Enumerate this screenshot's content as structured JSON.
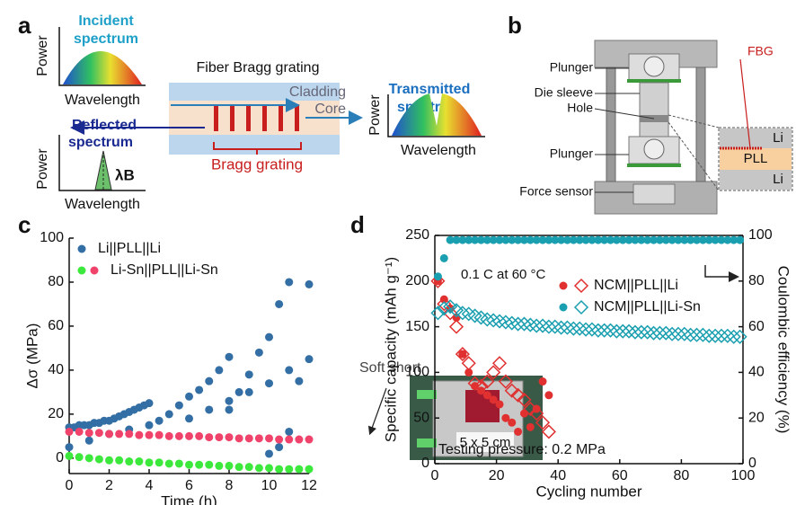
{
  "panel_labels": [
    "a",
    "b",
    "c",
    "d"
  ],
  "panel_a": {
    "incident": "Incident",
    "incident_2": "spectrum",
    "fiber": "Fiber Bragg grating",
    "cladding": "Cladding",
    "core": "Core",
    "transmitted": "Transmitted",
    "transmitted_2": "spectrum",
    "reflected": "Reflected",
    "reflected_2": "spectrum",
    "bragg": "Bragg grating",
    "lambda": "λB",
    "power": [
      "Power",
      "Power",
      "Power"
    ],
    "wavelength": [
      "Wavelength",
      "Wavelength",
      "Wavelength"
    ]
  },
  "panel_b": {
    "labels": [
      "Plunger",
      "Die sleeve",
      "Hole",
      "Plunger",
      "Force sensor"
    ],
    "fbg": "FBG",
    "layers": [
      "Li",
      "PLL",
      "Li"
    ]
  },
  "chart_data": [
    {
      "type": "scatter",
      "xlabel": "Time (h)",
      "ylabel": "Δσ (MPa)",
      "xlim": [
        0,
        12
      ],
      "ylim": [
        -7,
        100
      ],
      "xticks": [
        0,
        2,
        4,
        6,
        8,
        10,
        12
      ],
      "yticks": [
        0,
        20,
        40,
        60,
        80,
        100
      ],
      "frame": "open",
      "legend": "upper left",
      "series": [
        {
          "name": "Li||PLL||Li",
          "runs": [
            {
              "color": "#336ea5",
              "x": [
                0,
                0.25,
                0.5,
                0.75,
                1,
                1.25,
                1.5,
                1.75,
                2,
                2.25,
                2.5,
                2.75,
                3,
                3.25,
                3.5,
                3.75,
                4
              ],
              "values": [
                14,
                14,
                15,
                15,
                15,
                16,
                16,
                17,
                17,
                18,
                19,
                20,
                21,
                22,
                23,
                24,
                25
              ]
            },
            {
              "color": "#336ea5",
              "x": [
                0,
                1,
                2,
                3,
                4,
                4.5,
                5,
                5.5,
                6,
                6.5,
                7,
                7.5,
                8
              ],
              "values": [
                5,
                8,
                11,
                13,
                15,
                17,
                20,
                24,
                28,
                31,
                35,
                40,
                46
              ]
            },
            {
              "color": "#336ea5",
              "x": [
                6,
                7,
                8,
                9,
                10,
                11,
                12
              ],
              "values": [
                18,
                22,
                26,
                30,
                34,
                40,
                45
              ]
            },
            {
              "color": "#336ea5",
              "x": [
                8,
                8.5,
                9,
                9.5,
                10,
                10.5,
                11
              ],
              "values": [
                22,
                30,
                38,
                48,
                55,
                70,
                80
              ]
            },
            {
              "color": "#336ea5",
              "x": [
                10,
                10.5,
                11,
                11.5,
                12
              ],
              "values": [
                2,
                5,
                12,
                35,
                79
              ]
            }
          ]
        },
        {
          "name": "Li-Sn||PLL||Li-Sn",
          "runs": [
            {
              "color": "#3de83d",
              "x": [
                0,
                0.5,
                1,
                1.5,
                2,
                2.5,
                3,
                3.5,
                4,
                4.5,
                5,
                5.5,
                6,
                6.5,
                7,
                7.5,
                8,
                8.5,
                9,
                9.5,
                10,
                10.5,
                11,
                11.5,
                12
              ],
              "values": [
                1,
                0.5,
                0,
                -0.5,
                -1,
                -1,
                -1.5,
                -1.5,
                -2,
                -2,
                -2.5,
                -2.5,
                -3,
                -3,
                -3,
                -3.5,
                -3.5,
                -4,
                -4,
                -4.5,
                -4.5,
                -5,
                -5,
                -5,
                -5
              ]
            },
            {
              "color": "#f0436b",
              "x": [
                0,
                0.5,
                1,
                1.5,
                2,
                2.5,
                3,
                3.5,
                4,
                4.5,
                5,
                5.5,
                6,
                6.5,
                7,
                7.5,
                8,
                8.5,
                9,
                9.5,
                10,
                10.5,
                11,
                11.5,
                12
              ],
              "values": [
                12,
                12,
                11.5,
                11.5,
                11,
                11,
                11,
                10.5,
                10.5,
                10.5,
                10,
                10,
                10,
                10,
                9.5,
                9.5,
                9.5,
                9,
                9,
                9,
                9,
                8.5,
                8.5,
                8.5,
                8.5
              ]
            }
          ]
        }
      ]
    },
    {
      "type": "scatter",
      "xlabel": "Cycling number",
      "ylabel": "Specific capacity (mAh g⁻¹)",
      "y2label": "Coulombic efficiency (%)",
      "xlim": [
        0,
        100
      ],
      "ylim": [
        0,
        250
      ],
      "y2lim": [
        0,
        100
      ],
      "xticks": [
        0,
        20,
        40,
        60,
        80,
        100
      ],
      "yticks": [
        0,
        50,
        100,
        150,
        200,
        250
      ],
      "y2ticks": [
        0,
        20,
        40,
        60,
        80,
        100
      ],
      "frame": "box",
      "legend": "center right",
      "marker": "open-diamond",
      "y2_marker": "circle",
      "annotations": [
        "0.1 C at 60 °C",
        "Soft short",
        "Testing pressure: 0.2 MPa",
        "5 x 5 cm"
      ],
      "series": [
        {
          "name": "NCM||PLL||Li",
          "color": "#e03030",
          "x": [
            1,
            3,
            5,
            7,
            9,
            11,
            13,
            15,
            17,
            19,
            21,
            23,
            25,
            27,
            29,
            31,
            33,
            35,
            37
          ],
          "values": [
            200,
            175,
            165,
            150,
            120,
            110,
            88,
            85,
            90,
            100,
            110,
            90,
            80,
            75,
            70,
            60,
            55,
            45,
            35
          ],
          "y2_values": [
            80,
            72,
            68,
            64,
            48,
            40,
            34,
            32,
            30,
            28,
            26,
            20,
            18,
            14,
            22,
            16,
            24,
            36,
            30
          ]
        },
        {
          "name": "NCM||PLL||Li-Sn",
          "color": "#1a9fb0",
          "x": [
            1,
            3,
            5,
            7,
            9,
            11,
            13,
            15,
            17,
            19,
            21,
            23,
            25,
            27,
            29,
            31,
            33,
            35,
            37,
            39,
            41,
            43,
            45,
            47,
            49,
            51,
            53,
            55,
            57,
            59,
            61,
            63,
            65,
            67,
            69,
            71,
            73,
            75,
            77,
            79,
            81,
            83,
            85,
            87,
            89,
            91,
            93,
            95,
            97,
            99
          ],
          "values": [
            165,
            170,
            172,
            168,
            165,
            164,
            162,
            160,
            158,
            157,
            156,
            155,
            154,
            153,
            153,
            152,
            151,
            151,
            150,
            150,
            149,
            149,
            148,
            148,
            147,
            147,
            146,
            146,
            146,
            145,
            145,
            145,
            144,
            144,
            144,
            143,
            143,
            143,
            142,
            142,
            142,
            141,
            141,
            141,
            140,
            140,
            140,
            140,
            139,
            139
          ],
          "y2_values": [
            82,
            90,
            98,
            98,
            98,
            98,
            98,
            98,
            98,
            98,
            98,
            98,
            98,
            98,
            98,
            98,
            98,
            98,
            98,
            98,
            98,
            98,
            98,
            98,
            98,
            98,
            98,
            98,
            98,
            98,
            98,
            98,
            98,
            98,
            98,
            98,
            98,
            98,
            98,
            98,
            98,
            98,
            98,
            98,
            98,
            98,
            98,
            98,
            98,
            98
          ]
        }
      ]
    }
  ]
}
